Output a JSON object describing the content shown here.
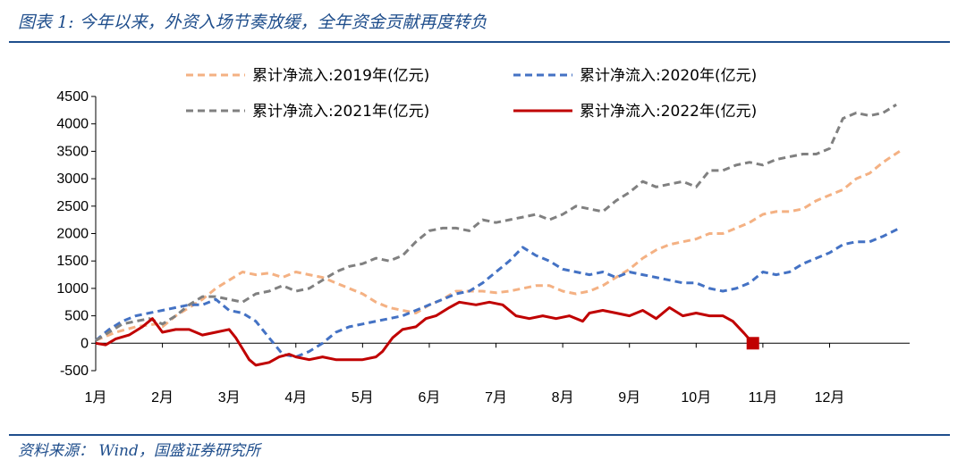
{
  "header": {
    "title": "图表 1:  今年以来，外资入场节奏放缓，全年资金贡献再度转负"
  },
  "footer": {
    "source": "资料来源：  Wind，国盛证券研究所"
  },
  "chart_data": {
    "type": "line",
    "title": "",
    "xlabel": "",
    "ylabel": "",
    "ylim": [
      -500,
      4500
    ],
    "yticks": [
      -500,
      0,
      500,
      1000,
      1500,
      2000,
      2500,
      3000,
      3500,
      4000,
      4500
    ],
    "x_unit": "month (1.0 = start of 1月)",
    "xlim": [
      1,
      13.2
    ],
    "xtick_labels": [
      "1月",
      "2月",
      "3月",
      "4月",
      "5月",
      "6月",
      "7月",
      "8月",
      "9月",
      "10月",
      "11月",
      "12月"
    ],
    "legend_position": "top",
    "grid": false,
    "series": [
      {
        "name": "累计净流入:2019年(亿元)",
        "color": "#f4b183",
        "style": "dashed",
        "points": [
          [
            1.0,
            50
          ],
          [
            1.3,
            200
          ],
          [
            1.6,
            300
          ],
          [
            1.9,
            350
          ],
          [
            2.0,
            300
          ],
          [
            2.2,
            500
          ],
          [
            2.4,
            650
          ],
          [
            2.6,
            800
          ],
          [
            2.8,
            1000
          ],
          [
            3.0,
            1150
          ],
          [
            3.2,
            1300
          ],
          [
            3.4,
            1250
          ],
          [
            3.6,
            1280
          ],
          [
            3.8,
            1200
          ],
          [
            4.0,
            1300
          ],
          [
            4.2,
            1250
          ],
          [
            4.4,
            1200
          ],
          [
            4.6,
            1100
          ],
          [
            4.8,
            1000
          ],
          [
            5.0,
            900
          ],
          [
            5.2,
            750
          ],
          [
            5.4,
            650
          ],
          [
            5.6,
            600
          ],
          [
            5.8,
            550
          ],
          [
            6.0,
            700
          ],
          [
            6.2,
            800
          ],
          [
            6.4,
            950
          ],
          [
            6.6,
            950
          ],
          [
            6.8,
            950
          ],
          [
            7.0,
            920
          ],
          [
            7.2,
            950
          ],
          [
            7.4,
            1000
          ],
          [
            7.6,
            1050
          ],
          [
            7.8,
            1050
          ],
          [
            8.0,
            950
          ],
          [
            8.2,
            900
          ],
          [
            8.4,
            950
          ],
          [
            8.6,
            1050
          ],
          [
            8.8,
            1200
          ],
          [
            9.0,
            1350
          ],
          [
            9.2,
            1550
          ],
          [
            9.4,
            1700
          ],
          [
            9.6,
            1800
          ],
          [
            9.8,
            1850
          ],
          [
            10.0,
            1900
          ],
          [
            10.2,
            2000
          ],
          [
            10.4,
            2000
          ],
          [
            10.6,
            2100
          ],
          [
            10.8,
            2200
          ],
          [
            11.0,
            2350
          ],
          [
            11.2,
            2400
          ],
          [
            11.4,
            2400
          ],
          [
            11.6,
            2450
          ],
          [
            11.8,
            2600
          ],
          [
            12.0,
            2700
          ],
          [
            12.2,
            2800
          ],
          [
            12.4,
            3000
          ],
          [
            12.6,
            3100
          ],
          [
            12.8,
            3300
          ],
          [
            13.05,
            3500
          ]
        ]
      },
      {
        "name": "累计净流入:2020年(亿元)",
        "color": "#4472c4",
        "style": "dashed",
        "points": [
          [
            1.0,
            50
          ],
          [
            1.2,
            250
          ],
          [
            1.4,
            400
          ],
          [
            1.6,
            500
          ],
          [
            1.8,
            550
          ],
          [
            2.0,
            600
          ],
          [
            2.2,
            650
          ],
          [
            2.4,
            700
          ],
          [
            2.6,
            700
          ],
          [
            2.8,
            800
          ],
          [
            3.0,
            600
          ],
          [
            3.2,
            550
          ],
          [
            3.4,
            400
          ],
          [
            3.6,
            100
          ],
          [
            3.8,
            -200
          ],
          [
            4.0,
            -250
          ],
          [
            4.2,
            -150
          ],
          [
            4.4,
            0
          ],
          [
            4.6,
            200
          ],
          [
            4.8,
            300
          ],
          [
            5.0,
            350
          ],
          [
            5.2,
            400
          ],
          [
            5.4,
            450
          ],
          [
            5.6,
            500
          ],
          [
            5.8,
            600
          ],
          [
            6.0,
            700
          ],
          [
            6.2,
            800
          ],
          [
            6.4,
            900
          ],
          [
            6.6,
            950
          ],
          [
            6.8,
            1100
          ],
          [
            7.0,
            1300
          ],
          [
            7.2,
            1500
          ],
          [
            7.4,
            1750
          ],
          [
            7.6,
            1600
          ],
          [
            7.8,
            1500
          ],
          [
            8.0,
            1350
          ],
          [
            8.2,
            1300
          ],
          [
            8.4,
            1250
          ],
          [
            8.6,
            1300
          ],
          [
            8.8,
            1200
          ],
          [
            9.0,
            1300
          ],
          [
            9.2,
            1250
          ],
          [
            9.4,
            1200
          ],
          [
            9.6,
            1150
          ],
          [
            9.8,
            1100
          ],
          [
            10.0,
            1100
          ],
          [
            10.2,
            1000
          ],
          [
            10.4,
            950
          ],
          [
            10.6,
            1000
          ],
          [
            10.8,
            1100
          ],
          [
            11.0,
            1300
          ],
          [
            11.2,
            1250
          ],
          [
            11.4,
            1300
          ],
          [
            11.6,
            1450
          ],
          [
            11.8,
            1550
          ],
          [
            12.0,
            1650
          ],
          [
            12.2,
            1800
          ],
          [
            12.4,
            1850
          ],
          [
            12.6,
            1850
          ],
          [
            12.8,
            1950
          ],
          [
            13.05,
            2100
          ]
        ]
      },
      {
        "name": "累计净流入:2021年(亿元)",
        "color": "#808080",
        "style": "dashed",
        "points": [
          [
            1.0,
            50
          ],
          [
            1.2,
            200
          ],
          [
            1.4,
            350
          ],
          [
            1.6,
            400
          ],
          [
            1.8,
            450
          ],
          [
            2.0,
            350
          ],
          [
            2.2,
            500
          ],
          [
            2.4,
            700
          ],
          [
            2.6,
            850
          ],
          [
            2.8,
            850
          ],
          [
            3.0,
            800
          ],
          [
            3.2,
            750
          ],
          [
            3.4,
            900
          ],
          [
            3.6,
            950
          ],
          [
            3.8,
            1050
          ],
          [
            4.0,
            950
          ],
          [
            4.2,
            1000
          ],
          [
            4.4,
            1150
          ],
          [
            4.6,
            1300
          ],
          [
            4.8,
            1400
          ],
          [
            5.0,
            1450
          ],
          [
            5.2,
            1550
          ],
          [
            5.4,
            1500
          ],
          [
            5.6,
            1600
          ],
          [
            5.8,
            1850
          ],
          [
            6.0,
            2050
          ],
          [
            6.2,
            2100
          ],
          [
            6.4,
            2100
          ],
          [
            6.6,
            2050
          ],
          [
            6.8,
            2250
          ],
          [
            7.0,
            2200
          ],
          [
            7.2,
            2250
          ],
          [
            7.4,
            2300
          ],
          [
            7.6,
            2350
          ],
          [
            7.8,
            2250
          ],
          [
            8.0,
            2350
          ],
          [
            8.2,
            2500
          ],
          [
            8.4,
            2450
          ],
          [
            8.6,
            2400
          ],
          [
            8.8,
            2600
          ],
          [
            9.0,
            2750
          ],
          [
            9.2,
            2950
          ],
          [
            9.4,
            2850
          ],
          [
            9.6,
            2900
          ],
          [
            9.8,
            2950
          ],
          [
            10.0,
            2850
          ],
          [
            10.2,
            3150
          ],
          [
            10.4,
            3150
          ],
          [
            10.6,
            3250
          ],
          [
            10.8,
            3300
          ],
          [
            11.0,
            3250
          ],
          [
            11.2,
            3350
          ],
          [
            11.4,
            3400
          ],
          [
            11.6,
            3450
          ],
          [
            11.8,
            3450
          ],
          [
            12.0,
            3550
          ],
          [
            12.2,
            4100
          ],
          [
            12.4,
            4200
          ],
          [
            12.6,
            4150
          ],
          [
            12.8,
            4200
          ],
          [
            13.0,
            4350
          ]
        ]
      },
      {
        "name": "累计净流入:2022年(亿元)",
        "color": "#c00000",
        "style": "solid",
        "points": [
          [
            1.0,
            0
          ],
          [
            1.15,
            -30
          ],
          [
            1.3,
            80
          ],
          [
            1.5,
            150
          ],
          [
            1.7,
            300
          ],
          [
            1.85,
            450
          ],
          [
            2.0,
            200
          ],
          [
            2.2,
            250
          ],
          [
            2.4,
            250
          ],
          [
            2.6,
            150
          ],
          [
            2.8,
            200
          ],
          [
            3.0,
            250
          ],
          [
            3.1,
            100
          ],
          [
            3.2,
            -100
          ],
          [
            3.3,
            -300
          ],
          [
            3.4,
            -400
          ],
          [
            3.6,
            -350
          ],
          [
            3.75,
            -250
          ],
          [
            3.9,
            -200
          ],
          [
            4.0,
            -250
          ],
          [
            4.2,
            -300
          ],
          [
            4.4,
            -250
          ],
          [
            4.6,
            -300
          ],
          [
            4.8,
            -300
          ],
          [
            5.0,
            -300
          ],
          [
            5.2,
            -250
          ],
          [
            5.3,
            -150
          ],
          [
            5.45,
            100
          ],
          [
            5.6,
            250
          ],
          [
            5.8,
            300
          ],
          [
            5.95,
            450
          ],
          [
            6.1,
            500
          ],
          [
            6.3,
            650
          ],
          [
            6.45,
            750
          ],
          [
            6.7,
            700
          ],
          [
            6.9,
            750
          ],
          [
            7.1,
            700
          ],
          [
            7.3,
            500
          ],
          [
            7.5,
            450
          ],
          [
            7.7,
            500
          ],
          [
            7.9,
            450
          ],
          [
            8.1,
            500
          ],
          [
            8.3,
            400
          ],
          [
            8.4,
            550
          ],
          [
            8.6,
            600
          ],
          [
            8.8,
            550
          ],
          [
            9.0,
            500
          ],
          [
            9.2,
            600
          ],
          [
            9.4,
            450
          ],
          [
            9.6,
            650
          ],
          [
            9.8,
            500
          ],
          [
            10.0,
            550
          ],
          [
            10.2,
            500
          ],
          [
            10.4,
            500
          ],
          [
            10.55,
            400
          ],
          [
            10.72,
            180
          ],
          [
            10.85,
            0
          ]
        ]
      }
    ],
    "end_marker": {
      "series": "累计净流入:2022年(亿元)",
      "x": 10.85,
      "y": 0,
      "color": "#c00000"
    }
  }
}
